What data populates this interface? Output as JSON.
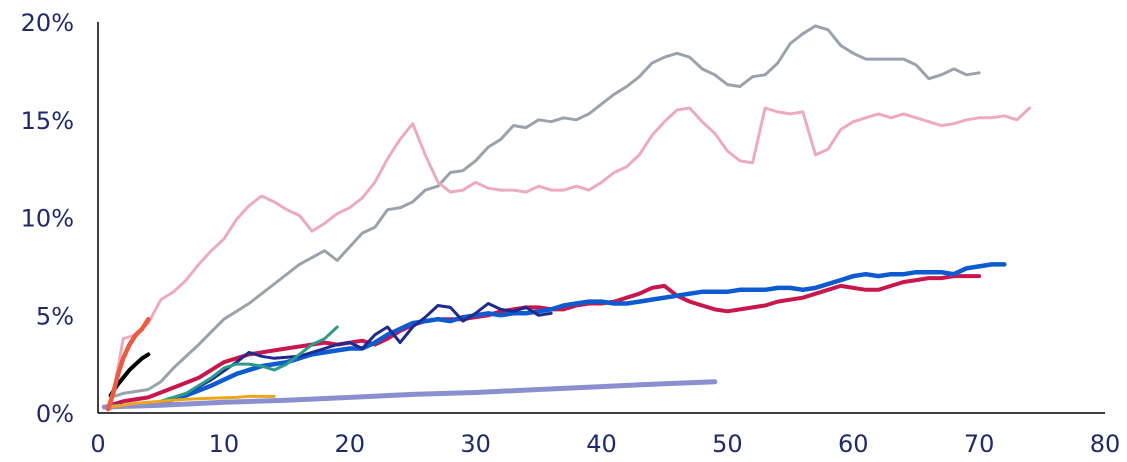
{
  "chart_data": {
    "type": "line",
    "title": "",
    "xlabel": "",
    "ylabel": "",
    "xlim": [
      0,
      80
    ],
    "ylim": [
      0,
      20
    ],
    "x_ticks": [
      "0",
      "10",
      "20",
      "30",
      "40",
      "50",
      "60",
      "70",
      "80"
    ],
    "y_ticks": [
      "0%",
      "5%",
      "10%",
      "15%",
      "20%"
    ],
    "grid": false,
    "legend": "none",
    "series": [
      {
        "color": "#9aa3ad",
        "width": 3,
        "x": [
          1,
          2,
          4,
          5,
          6,
          8,
          10,
          12,
          14,
          16,
          18,
          19,
          21,
          22,
          23,
          24,
          25,
          26,
          27,
          28,
          29,
          30,
          31,
          32,
          33,
          34,
          35,
          36,
          37,
          38,
          39,
          40,
          41,
          42,
          43,
          44,
          45,
          46,
          47,
          48,
          49,
          50,
          51,
          52,
          53,
          54,
          55,
          56,
          57,
          58,
          59,
          60,
          61,
          62,
          63,
          64,
          65,
          66,
          67,
          68,
          69,
          70
        ],
        "y": [
          0.8,
          1.0,
          1.2,
          1.6,
          2.3,
          3.5,
          4.8,
          5.6,
          6.6,
          7.6,
          8.3,
          7.8,
          9.2,
          9.5,
          10.4,
          10.5,
          10.8,
          11.4,
          11.6,
          12.3,
          12.4,
          12.9,
          13.6,
          14.0,
          14.7,
          14.6,
          15.0,
          14.9,
          15.1,
          15.0,
          15.3,
          15.8,
          16.3,
          16.7,
          17.2,
          17.9,
          18.2,
          18.4,
          18.2,
          17.6,
          17.3,
          16.8,
          16.7,
          17.2,
          17.3,
          17.9,
          18.9,
          19.4,
          19.8,
          19.6,
          18.8,
          18.4,
          18.1,
          18.1,
          18.1,
          18.1,
          17.8,
          17.1,
          17.3,
          17.6,
          17.3,
          17.4
        ]
      },
      {
        "color": "#eeabc0",
        "width": 3,
        "x": [
          1,
          2,
          3,
          4,
          5,
          6,
          7,
          8,
          9,
          10,
          11,
          12,
          13,
          14,
          15,
          16,
          17,
          18,
          19,
          20,
          21,
          22,
          23,
          24,
          25,
          26,
          27,
          28,
          29,
          30,
          31,
          32,
          33,
          34,
          35,
          36,
          37,
          38,
          39,
          40,
          41,
          42,
          43,
          44,
          45,
          46,
          47,
          48,
          49,
          50,
          51,
          52,
          53,
          54,
          55,
          56,
          57,
          58,
          59,
          60,
          61,
          62,
          63,
          64,
          65,
          66,
          67,
          68,
          69,
          70,
          71,
          72,
          73,
          74
        ],
        "y": [
          0.2,
          3.8,
          4.0,
          4.6,
          5.8,
          6.2,
          6.8,
          7.6,
          8.3,
          8.9,
          9.9,
          10.6,
          11.1,
          10.8,
          10.4,
          10.1,
          9.3,
          9.7,
          10.2,
          10.5,
          11.0,
          11.8,
          13.0,
          14.0,
          14.8,
          13.2,
          11.8,
          11.3,
          11.4,
          11.8,
          11.5,
          11.4,
          11.4,
          11.3,
          11.6,
          11.4,
          11.4,
          11.6,
          11.4,
          11.8,
          12.3,
          12.6,
          13.2,
          14.2,
          14.9,
          15.5,
          15.6,
          14.9,
          14.3,
          13.4,
          12.9,
          12.8,
          15.6,
          15.4,
          15.3,
          15.4,
          13.2,
          13.5,
          14.5,
          14.9,
          15.1,
          15.3,
          15.1,
          15.3,
          15.1,
          14.9,
          14.7,
          14.8,
          15.0,
          15.1,
          15.1,
          15.2,
          15.0,
          15.6
        ]
      },
      {
        "color": "#c8174d",
        "width": 4,
        "x": [
          0.5,
          2,
          4,
          6,
          8,
          10,
          12,
          14,
          16,
          18,
          19,
          21,
          22,
          23,
          24,
          25,
          26,
          27,
          28,
          29,
          30,
          31,
          32,
          33,
          34,
          35,
          36,
          37,
          38,
          39,
          40,
          41,
          42,
          43,
          44,
          45,
          46,
          47,
          48,
          49,
          50,
          51,
          52,
          53,
          54,
          55,
          56,
          57,
          58,
          59,
          60,
          61,
          62,
          63,
          64,
          65,
          66,
          67,
          68,
          69,
          70
        ],
        "y": [
          0.3,
          0.6,
          0.8,
          1.3,
          1.8,
          2.6,
          3.0,
          3.2,
          3.4,
          3.6,
          3.5,
          3.7,
          3.5,
          3.8,
          4.2,
          4.5,
          4.7,
          4.8,
          4.8,
          4.8,
          4.9,
          5.0,
          5.2,
          5.3,
          5.4,
          5.4,
          5.3,
          5.3,
          5.5,
          5.6,
          5.6,
          5.7,
          5.9,
          6.1,
          6.4,
          6.5,
          6.0,
          5.7,
          5.5,
          5.3,
          5.2,
          5.3,
          5.4,
          5.5,
          5.7,
          5.8,
          5.9,
          6.1,
          6.3,
          6.5,
          6.4,
          6.3,
          6.3,
          6.5,
          6.7,
          6.8,
          6.9,
          6.9,
          7.0,
          7.0,
          7.0
        ]
      },
      {
        "color": "#0d5bd0",
        "width": 4.5,
        "x": [
          0.5,
          3,
          5,
          7,
          9,
          11,
          13,
          15,
          17,
          19,
          20,
          21,
          22,
          23,
          24,
          25,
          26,
          27,
          28,
          29,
          30,
          31,
          32,
          33,
          34,
          35,
          36,
          37,
          38,
          39,
          40,
          41,
          42,
          43,
          44,
          45,
          46,
          47,
          48,
          49,
          50,
          51,
          52,
          53,
          54,
          55,
          56,
          57,
          58,
          59,
          60,
          61,
          62,
          63,
          64,
          65,
          66,
          67,
          68,
          69,
          70,
          71,
          72
        ],
        "y": [
          0.3,
          0.4,
          0.5,
          0.9,
          1.4,
          2.0,
          2.4,
          2.6,
          3.0,
          3.2,
          3.3,
          3.3,
          3.6,
          4.0,
          4.3,
          4.6,
          4.7,
          4.8,
          4.7,
          4.9,
          5.0,
          5.1,
          5.0,
          5.1,
          5.1,
          5.2,
          5.3,
          5.5,
          5.6,
          5.7,
          5.7,
          5.6,
          5.6,
          5.7,
          5.8,
          5.9,
          6.0,
          6.1,
          6.2,
          6.2,
          6.2,
          6.3,
          6.3,
          6.3,
          6.4,
          6.4,
          6.3,
          6.4,
          6.6,
          6.8,
          7.0,
          7.1,
          7.0,
          7.1,
          7.1,
          7.2,
          7.2,
          7.2,
          7.1,
          7.4,
          7.5,
          7.6,
          7.6
        ]
      },
      {
        "color": "#1f2a8e",
        "width": 3,
        "x": [
          1,
          3,
          5,
          7,
          9,
          11,
          12,
          13,
          14,
          16,
          18,
          19,
          20,
          21,
          22,
          23,
          24,
          25,
          26,
          27,
          28,
          29,
          30,
          31,
          32,
          33,
          34,
          35,
          36
        ],
        "y": [
          0.3,
          0.4,
          0.6,
          1.0,
          1.7,
          2.6,
          3.1,
          2.9,
          2.8,
          2.9,
          3.3,
          3.5,
          3.6,
          3.3,
          4.0,
          4.4,
          3.6,
          4.4,
          4.9,
          5.5,
          5.4,
          4.7,
          5.1,
          5.6,
          5.3,
          5.2,
          5.4,
          5.0,
          5.1
        ]
      },
      {
        "color": "#2e9b8a",
        "width": 3,
        "x": [
          1,
          3,
          5,
          7,
          9,
          10,
          11,
          12,
          13,
          14,
          15,
          16,
          17,
          18,
          19
        ],
        "y": [
          0.3,
          0.4,
          0.6,
          1.0,
          1.8,
          2.3,
          2.5,
          2.5,
          2.4,
          2.2,
          2.5,
          3.0,
          3.5,
          3.8,
          4.4
        ]
      },
      {
        "color": "#8a8fcf",
        "width": 5,
        "x": [
          0.5,
          5,
          10,
          15,
          20,
          25,
          30,
          35,
          40,
          45,
          49
        ],
        "y": [
          0.3,
          0.4,
          0.55,
          0.65,
          0.8,
          0.95,
          1.05,
          1.2,
          1.35,
          1.5,
          1.6
        ]
      },
      {
        "color": "#eea51c",
        "width": 3,
        "x": [
          1,
          3,
          5,
          7,
          9,
          11,
          12,
          13,
          14
        ],
        "y": [
          0.3,
          0.5,
          0.6,
          0.7,
          0.75,
          0.8,
          0.85,
          0.85,
          0.85
        ]
      },
      {
        "color": "#000000",
        "width": 4,
        "x": [
          1,
          1.5,
          2,
          2.5,
          3,
          3.5,
          4
        ],
        "y": [
          0.9,
          1.4,
          1.8,
          2.2,
          2.5,
          2.8,
          3.0
        ]
      },
      {
        "color": "#ec5b3f",
        "width": 4.5,
        "x": [
          0.8,
          1.2,
          1.6,
          2,
          2.5,
          3,
          3.5,
          4
        ],
        "y": [
          0.2,
          1.0,
          2.0,
          2.8,
          3.5,
          4.0,
          4.3,
          4.8
        ]
      }
    ]
  }
}
